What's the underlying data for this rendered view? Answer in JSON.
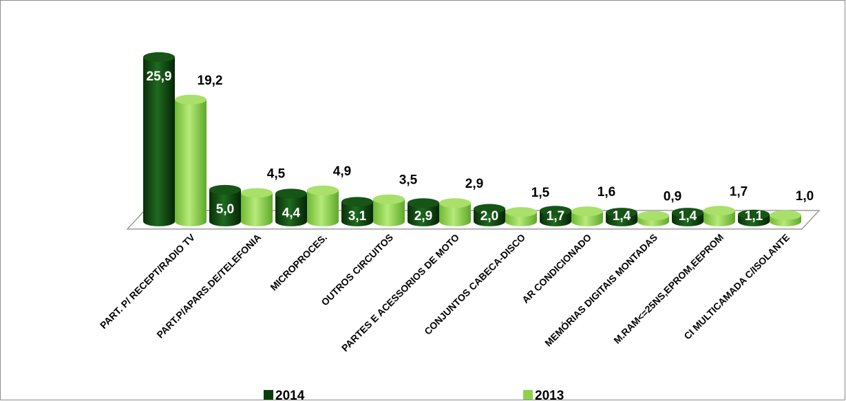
{
  "chart_data": {
    "type": "bar",
    "title": "",
    "xlabel": "",
    "ylabel": "",
    "ylim": [
      0,
      26
    ],
    "grid": false,
    "legend_position": "bottom",
    "categories": [
      "PART. P/ RECEPT/RADIO TV",
      "PART.P/APARS.DE/TELEFONIA",
      "MICROPROCES.",
      "OUTROS CIRCUITOS",
      "PARTES E ACESSORIOS DE MOTO",
      "CONJUNTOS CABECA-DISCO",
      "AR CONDICIONADO",
      "MEMÓRIAS DIGITAIS MONTADAS",
      "M.RAM<=25NS,EPROM,EEPROM",
      "CI MULTICAMADA C/ISOLANTE"
    ],
    "series": [
      {
        "name": "2014",
        "color": "#0b3d0b",
        "values": [
          25.9,
          5.0,
          4.4,
          3.1,
          2.9,
          2.0,
          1.7,
          1.4,
          1.4,
          1.1
        ],
        "labels": [
          "25,9",
          "5,0",
          "4,4",
          "3,1",
          "2,9",
          "2,0",
          "1,7",
          "1,4",
          "1,4",
          "1,1"
        ]
      },
      {
        "name": "2013",
        "color": "#8fd14f",
        "values": [
          19.2,
          4.5,
          4.9,
          3.5,
          2.9,
          1.5,
          1.6,
          0.9,
          1.7,
          1.0
        ],
        "labels": [
          "19,2",
          "4,5",
          "4,9",
          "3,5",
          "2,9",
          "1,5",
          "1,6",
          "0,9",
          "1,7",
          "1,0"
        ]
      }
    ]
  }
}
